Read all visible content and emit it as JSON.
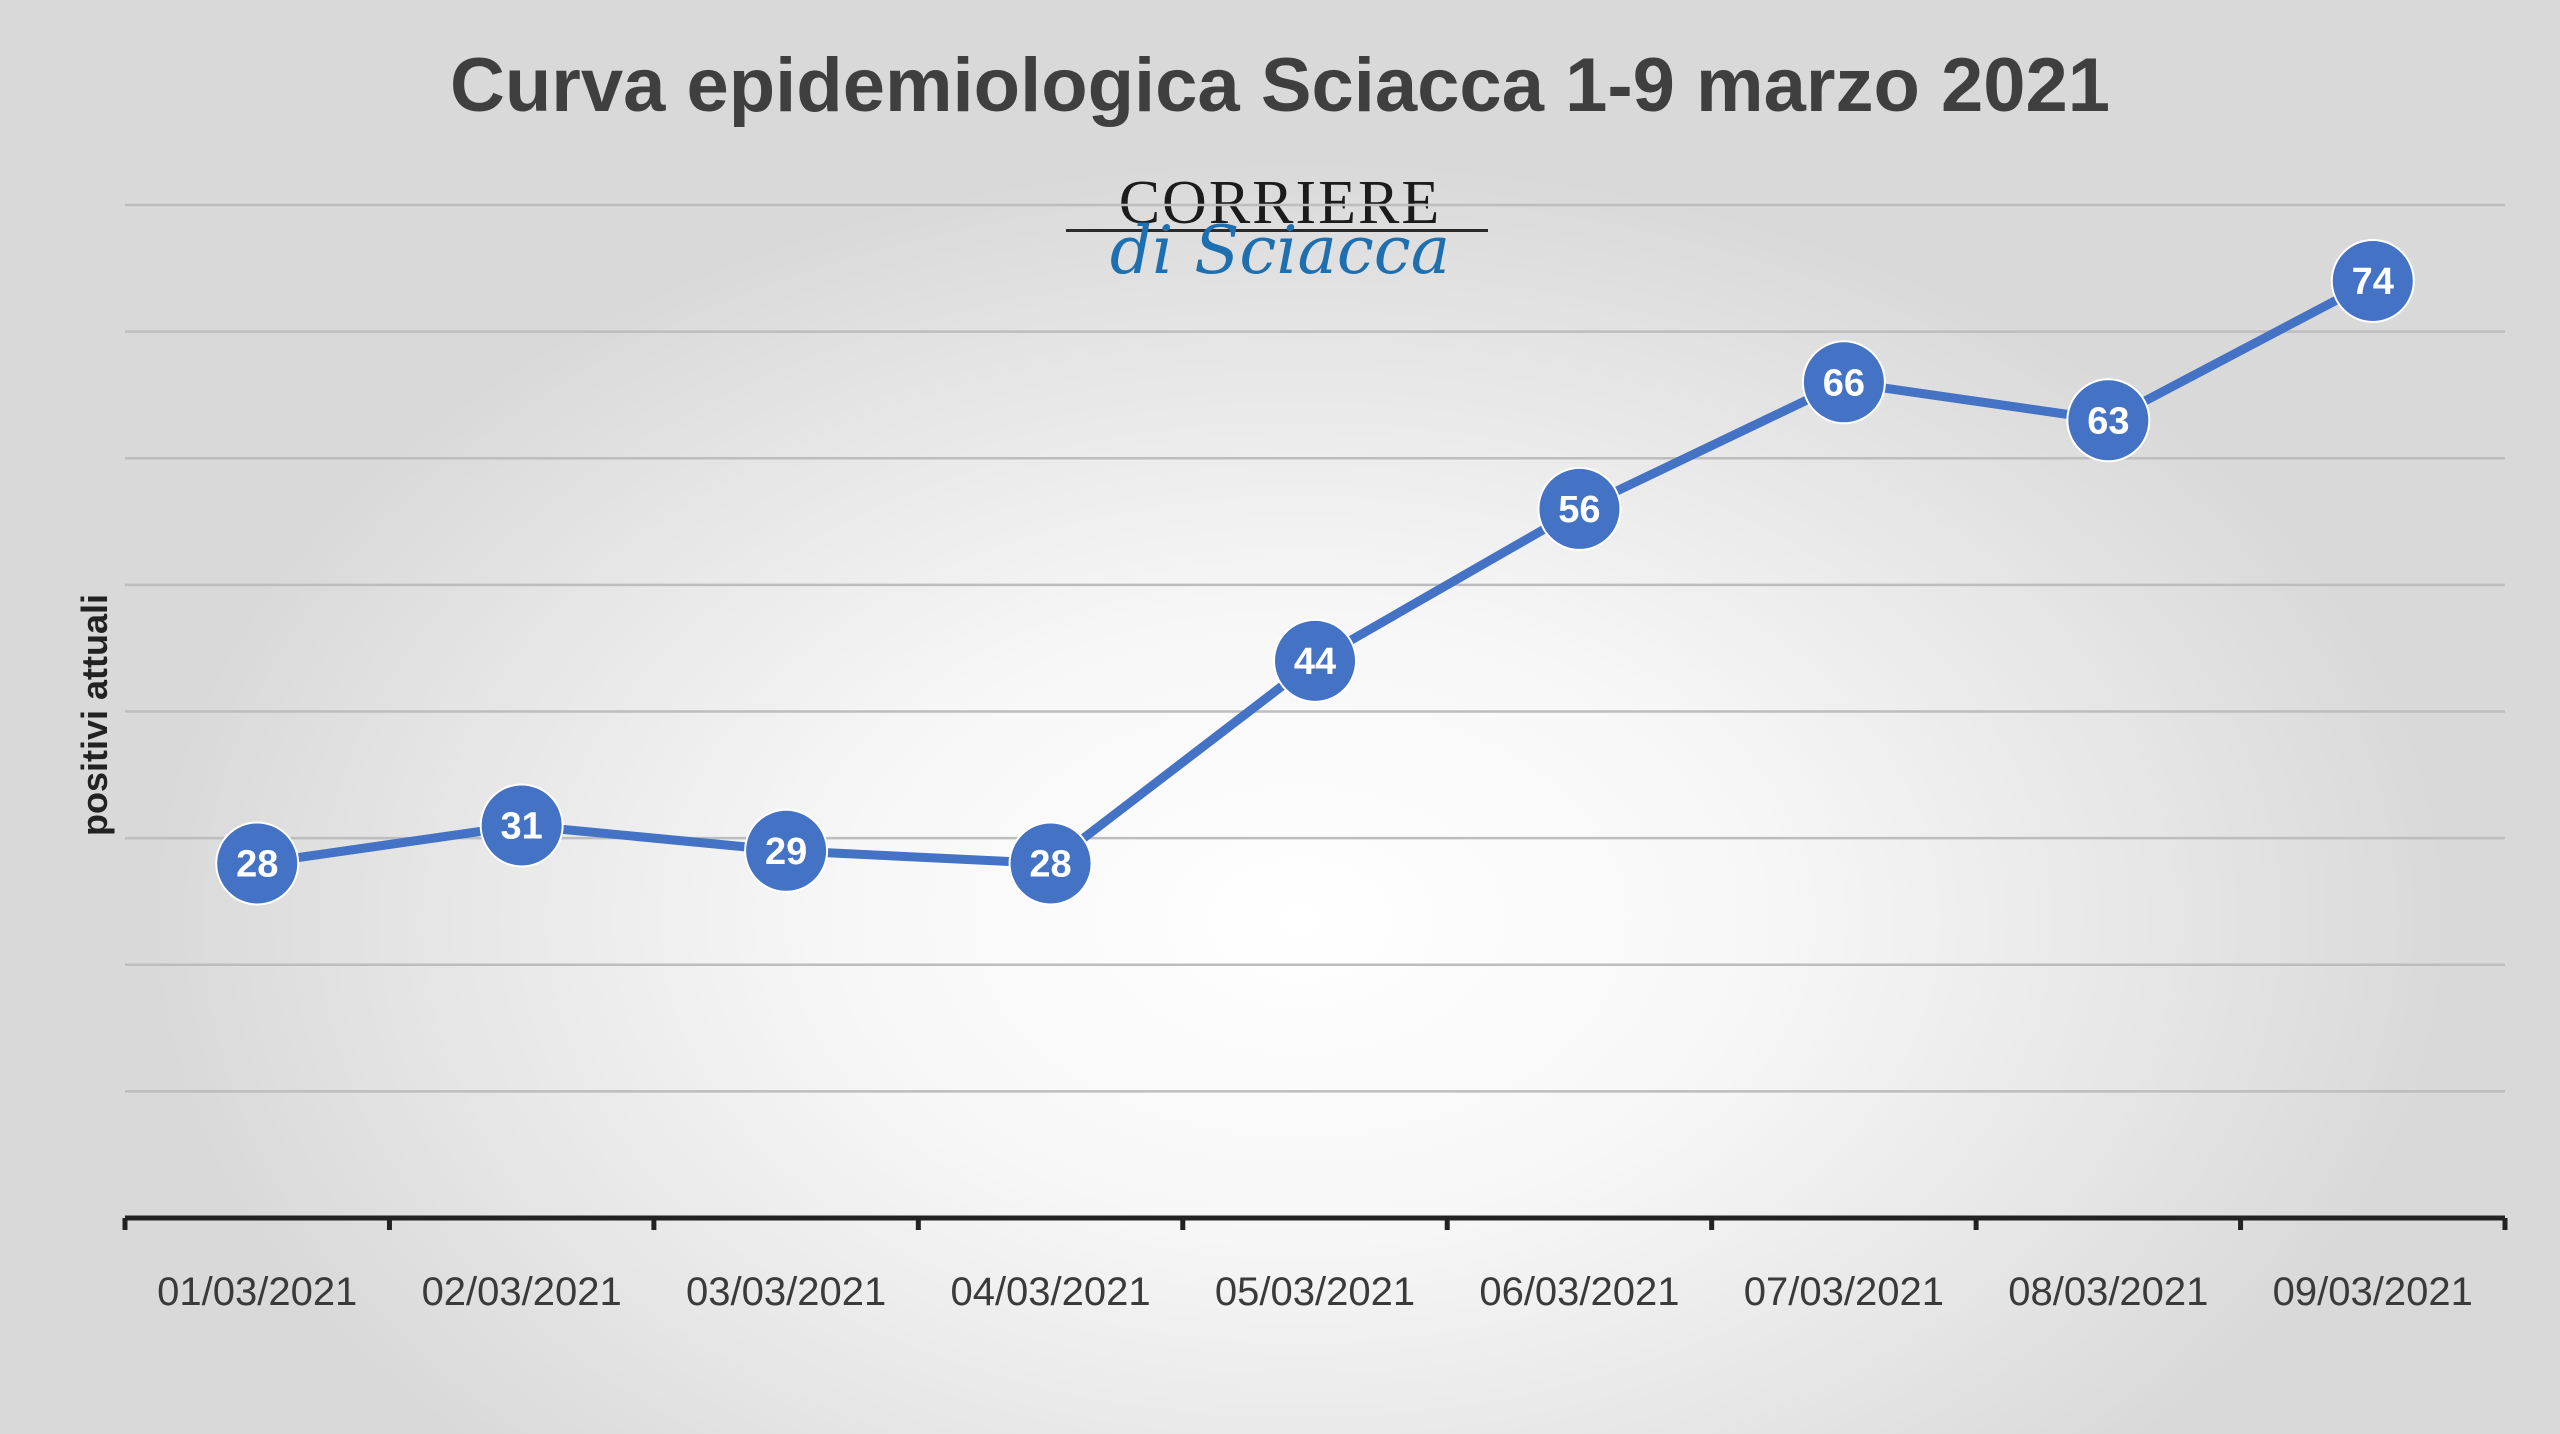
{
  "chart_data": {
    "type": "line",
    "title": "Curva epidemiologica Sciacca 1-9 marzo 2021",
    "xlabel": "",
    "ylabel": "positivi attuali",
    "categories": [
      "01/03/2021",
      "02/03/2021",
      "03/03/2021",
      "04/03/2021",
      "05/03/2021",
      "06/03/2021",
      "07/03/2021",
      "08/03/2021",
      "09/03/2021"
    ],
    "series": [
      {
        "values": [
          28,
          31,
          29,
          28,
          44,
          56,
          66,
          63,
          74
        ]
      }
    ],
    "ylim": [
      0,
      80
    ],
    "grid": true,
    "legend": "none",
    "colors": {
      "line": "#4472c4",
      "marker": "#4472c4",
      "label": "#ffffff",
      "grid": "#bdbdbd",
      "axis": "#222222"
    }
  },
  "logo": {
    "line1": "CORRIERE",
    "line2": "di Sciacca"
  }
}
